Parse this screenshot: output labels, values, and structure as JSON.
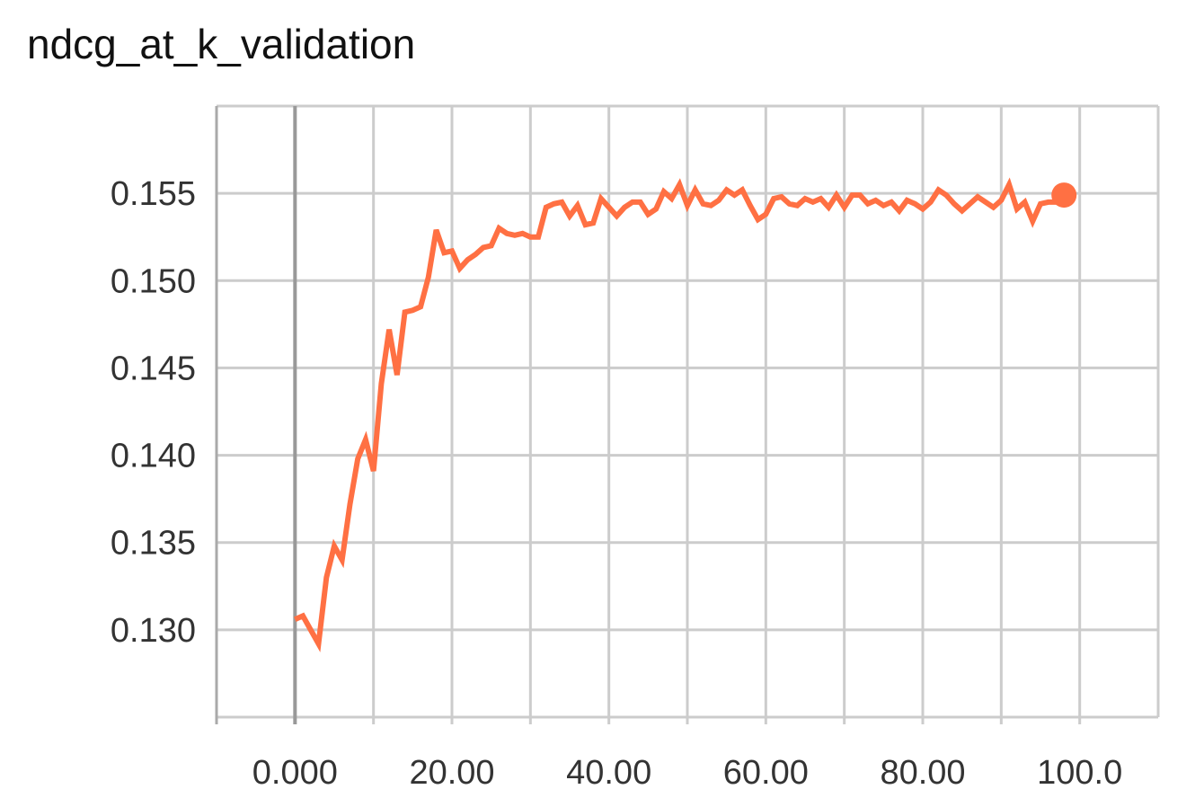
{
  "chart_data": {
    "type": "line",
    "title": "ndcg_at_k_validation",
    "xlabel": "",
    "ylabel": "",
    "xlim": [
      -10,
      110
    ],
    "ylim": [
      0.125,
      0.16
    ],
    "x_ticks": [
      0,
      20,
      40,
      60,
      80,
      100
    ],
    "x_tick_labels": [
      "0.000",
      "20.00",
      "40.00",
      "60.00",
      "80.00",
      "100.0"
    ],
    "y_ticks": [
      0.13,
      0.135,
      0.14,
      0.145,
      0.15,
      0.155
    ],
    "y_tick_labels": [
      "0.130",
      "0.135",
      "0.140",
      "0.145",
      "0.150",
      "0.155"
    ],
    "x_grid_lines": [
      -10,
      0,
      10,
      20,
      30,
      40,
      50,
      60,
      70,
      80,
      90,
      100,
      110
    ],
    "grid": true,
    "legend": "none",
    "series": [
      {
        "color": "#ff7043",
        "marker_last_point": true,
        "x": [
          0,
          1,
          2,
          3,
          4,
          5,
          6,
          7,
          8,
          9,
          10,
          11,
          12,
          13,
          14,
          15,
          16,
          17,
          18,
          19,
          20,
          21,
          22,
          23,
          24,
          25,
          26,
          27,
          28,
          29,
          30,
          31,
          32,
          33,
          34,
          35,
          36,
          37,
          38,
          39,
          40,
          41,
          42,
          43,
          44,
          45,
          46,
          47,
          48,
          49,
          50,
          51,
          52,
          53,
          54,
          55,
          56,
          57,
          58,
          59,
          60,
          61,
          62,
          63,
          64,
          65,
          66,
          67,
          68,
          69,
          70,
          71,
          72,
          73,
          74,
          75,
          76,
          77,
          78,
          79,
          80,
          81,
          82,
          83,
          84,
          85,
          86,
          87,
          88,
          89,
          90,
          91,
          92,
          93,
          94,
          95,
          96,
          97,
          98
        ],
        "values": [
          0.1306,
          0.1308,
          0.13,
          0.1292,
          0.133,
          0.1348,
          0.134,
          0.1372,
          0.1398,
          0.1409,
          0.1391,
          0.1441,
          0.1472,
          0.1446,
          0.1482,
          0.1483,
          0.1485,
          0.1502,
          0.1529,
          0.1516,
          0.1517,
          0.1507,
          0.1512,
          0.1515,
          0.1519,
          0.152,
          0.153,
          0.1527,
          0.1526,
          0.1527,
          0.1525,
          0.1525,
          0.1542,
          0.1544,
          0.1545,
          0.1537,
          0.1543,
          0.1532,
          0.1533,
          0.1547,
          0.1542,
          0.1537,
          0.1542,
          0.1545,
          0.1545,
          0.1538,
          0.1541,
          0.1551,
          0.1547,
          0.1555,
          0.1543,
          0.1552,
          0.1544,
          0.1543,
          0.1546,
          0.1552,
          0.1549,
          0.1552,
          0.1543,
          0.1535,
          0.1538,
          0.1547,
          0.1548,
          0.1544,
          0.1543,
          0.1547,
          0.1545,
          0.1547,
          0.1542,
          0.1549,
          0.1542,
          0.1549,
          0.1549,
          0.1544,
          0.1546,
          0.1543,
          0.1545,
          0.154,
          0.1546,
          0.1544,
          0.1541,
          0.1545,
          0.1552,
          0.1549,
          0.1544,
          0.154,
          0.1544,
          0.1548,
          0.1545,
          0.1542,
          0.1546,
          0.1555,
          0.1541,
          0.1545,
          0.1534,
          0.1544,
          0.1545,
          0.1545,
          0.1549
        ]
      }
    ]
  }
}
